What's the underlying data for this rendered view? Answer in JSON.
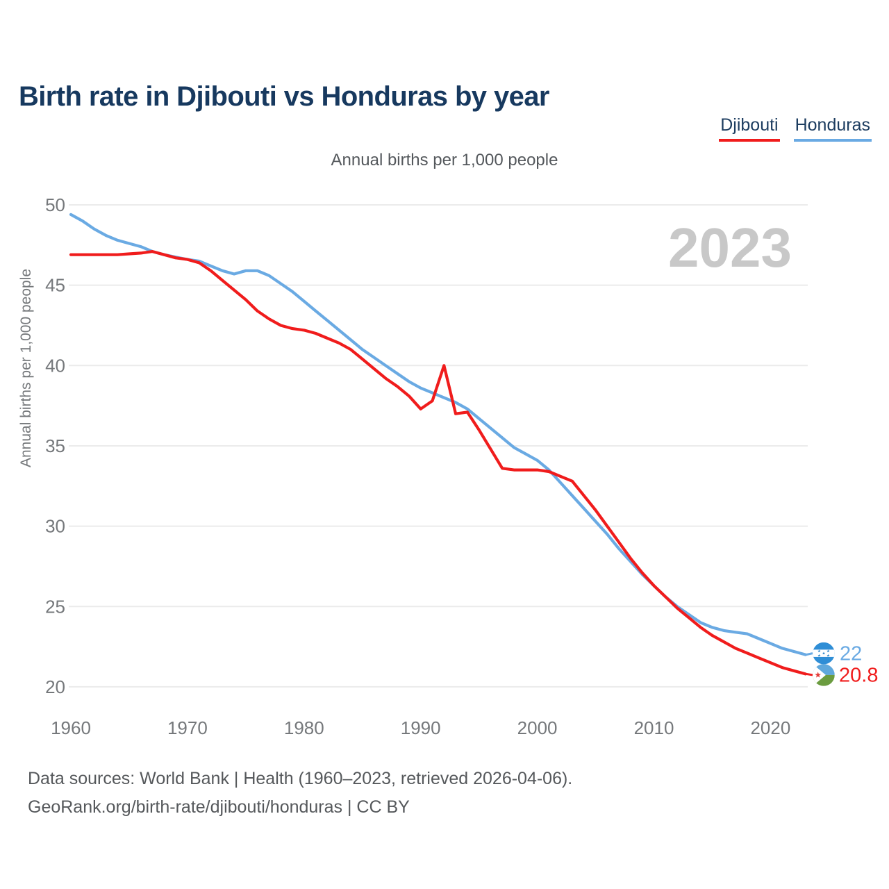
{
  "header": {
    "title": "Birth rate in Djibouti vs Honduras by year",
    "subtitle": "Annual births per 1,000 people"
  },
  "legend": {
    "items": [
      {
        "label": "Djibouti",
        "color": "#f01c1c"
      },
      {
        "label": "Honduras",
        "color": "#6aaae3"
      }
    ]
  },
  "watermark": "2023",
  "chart_data": {
    "type": "line",
    "title": "Birth rate in Djibouti vs Honduras by year",
    "subtitle": "Annual births per 1,000 people",
    "xlabel": "",
    "ylabel": "Annual births per 1,000 people",
    "x_ticks": [
      1960,
      1970,
      1980,
      1990,
      2000,
      2010,
      2020
    ],
    "y_ticks": [
      20,
      25,
      30,
      35,
      40,
      45,
      50
    ],
    "xlim": [
      1960,
      2023
    ],
    "ylim": [
      20,
      50
    ],
    "grid": "horizontal",
    "legend_position": "top-right",
    "x": [
      1960,
      1961,
      1962,
      1963,
      1964,
      1965,
      1966,
      1967,
      1968,
      1969,
      1970,
      1971,
      1972,
      1973,
      1974,
      1975,
      1976,
      1977,
      1978,
      1979,
      1980,
      1981,
      1982,
      1983,
      1984,
      1985,
      1986,
      1987,
      1988,
      1989,
      1990,
      1991,
      1992,
      1993,
      1994,
      1995,
      1996,
      1997,
      1998,
      1999,
      2000,
      2001,
      2002,
      2003,
      2004,
      2005,
      2006,
      2007,
      2008,
      2009,
      2010,
      2011,
      2012,
      2013,
      2014,
      2015,
      2016,
      2017,
      2018,
      2019,
      2020,
      2021,
      2022,
      2023
    ],
    "series": [
      {
        "name": "Djibouti",
        "color": "#f01c1c",
        "flag_icon": "djibouti-flag-icon",
        "end_label": "20.8",
        "values": [
          46.9,
          46.9,
          46.9,
          46.9,
          46.9,
          46.95,
          47.0,
          47.1,
          46.9,
          46.7,
          46.6,
          46.4,
          45.9,
          45.3,
          44.7,
          44.1,
          43.4,
          42.9,
          42.5,
          42.3,
          42.2,
          42.0,
          41.7,
          41.4,
          41.0,
          40.4,
          39.8,
          39.2,
          38.7,
          38.1,
          37.3,
          37.8,
          40.0,
          37.0,
          37.1,
          36.0,
          34.8,
          33.6,
          33.5,
          33.5,
          33.5,
          33.4,
          33.1,
          32.8,
          31.9,
          31.0,
          30.0,
          29.0,
          28.0,
          27.1,
          26.3,
          25.6,
          24.9,
          24.3,
          23.7,
          23.2,
          22.8,
          22.4,
          22.1,
          21.8,
          21.5,
          21.2,
          21.0,
          20.8
        ]
      },
      {
        "name": "Honduras",
        "color": "#6aaae3",
        "flag_icon": "honduras-flag-icon",
        "end_label": "22",
        "values": [
          49.4,
          49.0,
          48.5,
          48.1,
          47.8,
          47.6,
          47.4,
          47.1,
          46.9,
          46.75,
          46.6,
          46.5,
          46.2,
          45.9,
          45.7,
          45.9,
          45.9,
          45.6,
          45.1,
          44.6,
          44.0,
          43.4,
          42.8,
          42.2,
          41.6,
          41.0,
          40.5,
          40.0,
          39.5,
          39.0,
          38.6,
          38.3,
          38.0,
          37.7,
          37.3,
          36.7,
          36.1,
          35.5,
          34.9,
          34.5,
          34.1,
          33.5,
          32.7,
          31.9,
          31.1,
          30.3,
          29.5,
          28.6,
          27.8,
          27.0,
          26.3,
          25.6,
          25.0,
          24.5,
          24.0,
          23.7,
          23.5,
          23.4,
          23.3,
          23.0,
          22.7,
          22.4,
          22.2,
          22.0
        ]
      }
    ]
  },
  "flag_colors": {
    "honduras": {
      "field": "#2f8ed6",
      "band": "#ffffff",
      "stars": "#2f86c9"
    },
    "djibouti": {
      "top": "#5fa8dc",
      "bottom": "#6b9c40",
      "triangle": "#ffffff",
      "star": "#e23a38"
    }
  },
  "style_colors": {
    "title": "#17395f",
    "axis_text": "#75787b",
    "gridline": "#ebebeb",
    "watermark": "#c8c8c8",
    "footer_text": "#55585b"
  },
  "footer": {
    "line1": "Data sources: World Bank | Health (1960–2023, retrieved 2026-04-06).",
    "line2": "GeoRank.org/birth-rate/djibouti/honduras | CC BY"
  }
}
